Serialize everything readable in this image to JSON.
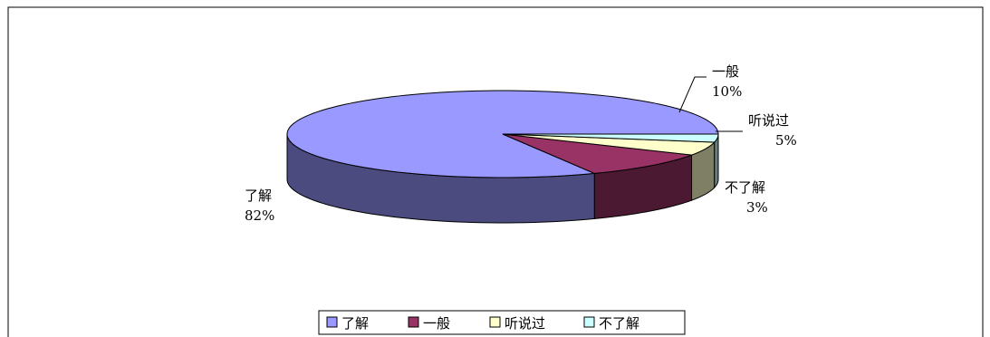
{
  "chart_data": {
    "type": "pie",
    "title": "",
    "slices": [
      {
        "label": "了解",
        "value": 82,
        "pct_label": "82%",
        "color": "#9999ff",
        "side_color": "#4b4b7f"
      },
      {
        "label": "一般",
        "value": 10,
        "pct_label": "10%",
        "color": "#993366",
        "side_color": "#4c1933"
      },
      {
        "label": "听说过",
        "value": 5,
        "pct_label": "5%",
        "color": "#ffffcc",
        "side_color": "#7f7f66"
      },
      {
        "label": "不了解",
        "value": 3,
        "pct_label": "3%",
        "color": "#ccffff",
        "side_color": "#667f7f"
      }
    ],
    "legend": {
      "placement": "bottom",
      "entries": [
        "了解",
        "一般",
        "听说过",
        "不了解"
      ]
    },
    "style": {
      "three_d": true,
      "outline_color": "#000000"
    }
  }
}
